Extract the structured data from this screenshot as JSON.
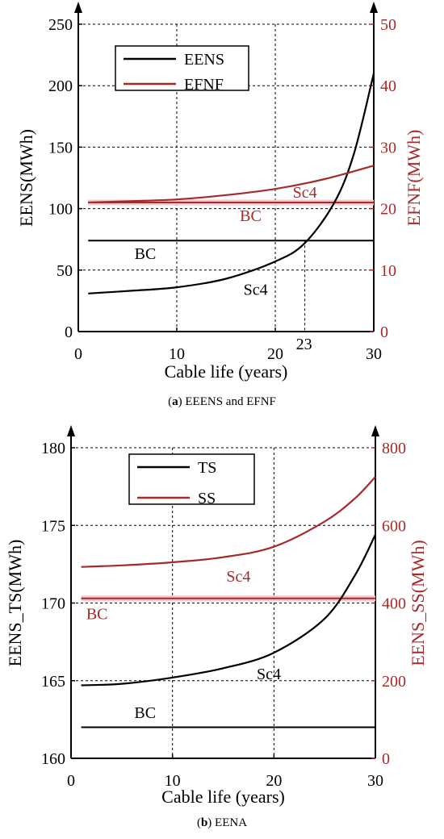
{
  "figure": {
    "panel_a_caption": {
      "letter": "a",
      "text": " EEENS and EFNF"
    },
    "panel_b_caption": {
      "letter": "b",
      "text": " EENA"
    }
  },
  "colors": {
    "black": "#000000",
    "red": "#a52a2a",
    "highlight": "#f4c7cd"
  },
  "chart_data": [
    {
      "type": "line",
      "id": "a",
      "xlabel": "Cable life (years)",
      "ylabel": "EENS(MWh)",
      "ylabel_right": "EFNF(MWh)",
      "xlim": [
        0,
        30
      ],
      "ylim": [
        0,
        250
      ],
      "ylim_right": [
        0,
        50
      ],
      "xticks": [
        0,
        10,
        20,
        30
      ],
      "yticks": [
        0,
        50,
        100,
        150,
        200,
        250
      ],
      "yticks_right": [
        0,
        10,
        20,
        30,
        40,
        50
      ],
      "marked_x": {
        "value": 23,
        "label": "23"
      },
      "grid": "dashed",
      "legend_position": "top-left",
      "series": [
        {
          "name": "EENS",
          "axis": "left",
          "color": "#000000",
          "x": [
            1,
            5,
            10,
            15,
            20,
            23,
            26,
            28,
            30
          ],
          "y": [
            31,
            33,
            36,
            43,
            57,
            72,
            105,
            145,
            210
          ]
        },
        {
          "name": "EFNF",
          "axis": "right",
          "color": "#a52a2a",
          "x": [
            1,
            5,
            10,
            15,
            20,
            25,
            30
          ],
          "y": [
            21,
            21.2,
            21.5,
            22.2,
            23.2,
            24.8,
            27
          ]
        }
      ],
      "reference_lines": [
        {
          "axis": "left",
          "value": 74,
          "color": "#000000"
        },
        {
          "axis": "right",
          "value": 21,
          "color": "#a52a2a"
        }
      ],
      "annotations": [
        {
          "text": "Sc4",
          "color": "#a52a2a",
          "x": 23,
          "y": 21.8,
          "axis": "right"
        },
        {
          "text": "BC",
          "color": "#a52a2a",
          "x": 17.5,
          "y": 18,
          "axis": "right"
        },
        {
          "text": "BC",
          "color": "#000000",
          "x": 6.8,
          "y": 59,
          "axis": "left"
        },
        {
          "text": "Sc4",
          "color": "#000000",
          "x": 18,
          "y": 30,
          "axis": "left"
        }
      ]
    },
    {
      "type": "line",
      "id": "b",
      "xlabel": "Cable life (years)",
      "ylabel": "EENS_TS(MWh)",
      "ylabel_right": "EENS_SS(MWh)",
      "xlim": [
        0,
        30
      ],
      "ylim": [
        160,
        180
      ],
      "ylim_right": [
        0,
        800
      ],
      "xticks": [
        0,
        10,
        20,
        30
      ],
      "yticks": [
        160,
        165,
        170,
        175,
        180
      ],
      "yticks_right": [
        0,
        200,
        400,
        600,
        800
      ],
      "grid": "dashed",
      "legend_position": "top-left",
      "series": [
        {
          "name": "TS",
          "axis": "left",
          "color": "#000000",
          "x": [
            1,
            5,
            10,
            15,
            20,
            25,
            28,
            30
          ],
          "y": [
            164.7,
            164.8,
            165.2,
            165.8,
            166.8,
            169,
            171.8,
            174.4
          ]
        },
        {
          "name": "SS",
          "axis": "right",
          "color": "#a52a2a",
          "x": [
            1,
            5,
            10,
            15,
            20,
            25,
            28,
            30
          ],
          "y": [
            493,
            497,
            505,
            518,
            545,
            610,
            670,
            725
          ]
        }
      ],
      "reference_lines": [
        {
          "axis": "left",
          "value": 162,
          "color": "#000000"
        },
        {
          "axis": "right",
          "value": 412,
          "color": "#a52a2a"
        }
      ],
      "annotations": [
        {
          "text": "Sc4",
          "color": "#a52a2a",
          "x": 16.5,
          "y": 455,
          "axis": "right"
        },
        {
          "text": "BC",
          "color": "#a52a2a",
          "x": 1.5,
          "y": 358,
          "axis": "right",
          "anchor": "left"
        },
        {
          "text": "Sc4",
          "color": "#000000",
          "x": 19.5,
          "y": 165.1,
          "axis": "left"
        },
        {
          "text": "BC",
          "color": "#000000",
          "x": 7.3,
          "y": 162.6,
          "axis": "left"
        }
      ]
    }
  ]
}
